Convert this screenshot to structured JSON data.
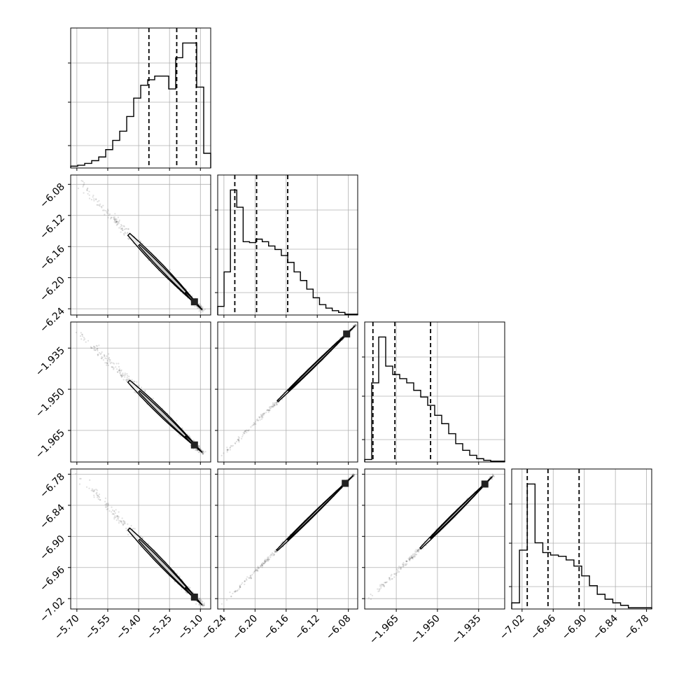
{
  "chart_data": {
    "type": "corner",
    "grid": true,
    "colors": {
      "line": "#000000",
      "grid": "#b0b0b0",
      "scatter": "#555555"
    },
    "parameters": [
      {
        "range": [
          -5.73,
          -5.05
        ],
        "ticks": [
          -5.7,
          -5.55,
          -5.4,
          -5.25,
          -5.1
        ],
        "tick_labels": [
          "−5.70",
          "−5.55",
          "−5.40",
          "−5.25",
          "−5.10"
        ],
        "quantiles": [
          -5.35,
          -5.215,
          -5.12
        ],
        "hist_counts": [
          0.2,
          0.3,
          0.5,
          0.8,
          1.2,
          2.0,
          3.0,
          4.0,
          5.6,
          7.6,
          9.0,
          9.6,
          10.0,
          10.0,
          8.6,
          12.0,
          13.6,
          13.6,
          8.8,
          1.6
        ]
      },
      {
        "range": [
          -6.248,
          -6.068
        ],
        "ticks": [
          -6.24,
          -6.2,
          -6.16,
          -6.12,
          -6.08
        ],
        "tick_labels": [
          "−6.24",
          "−6.20",
          "−6.16",
          "−6.12",
          "−6.08"
        ],
        "quantiles": [
          -6.226,
          -6.198,
          -6.158
        ],
        "hist_counts": [
          1.0,
          5.0,
          14.5,
          12.5,
          8.5,
          8.4,
          8.8,
          8.5,
          8.0,
          7.6,
          6.9,
          6.1,
          5.0,
          4.0,
          3.0,
          2.0,
          1.2,
          0.8,
          0.5,
          0.3,
          0.1,
          0.1
        ]
      },
      {
        "range": [
          -1.9765,
          -1.9255
        ],
        "ticks": [
          -1.965,
          -1.95,
          -1.935
        ],
        "tick_labels": [
          "−1.965",
          "−1.950",
          "−1.935"
        ],
        "quantiles": [
          -1.9735,
          -1.9655,
          -1.9525
        ],
        "hist_counts": [
          0.3,
          9.5,
          15.0,
          11.5,
          10.5,
          10.0,
          9.5,
          8.6,
          7.8,
          6.8,
          5.6,
          4.6,
          3.4,
          2.2,
          1.4,
          0.8,
          0.4,
          0.2,
          0.1,
          0.1
        ]
      },
      {
        "range": [
          -7.04,
          -6.77
        ],
        "ticks": [
          -7.02,
          -6.96,
          -6.9,
          -6.84,
          -6.78
        ],
        "tick_labels": [
          "−7.02",
          "−6.96",
          "−6.90",
          "−6.84",
          "−6.78"
        ],
        "quantiles": [
          -7.01,
          -6.97,
          -6.91
        ],
        "hist_counts": [
          0.5,
          4.8,
          10.2,
          5.4,
          4.6,
          4.4,
          4.3,
          4.0,
          3.5,
          2.7,
          1.9,
          1.2,
          0.8,
          0.5,
          0.3,
          0.1,
          0.1,
          0.1
        ]
      }
    ],
    "pairs": [
      {
        "row": 1,
        "col": 0,
        "from": [
          -5.71,
          -6.073
        ],
        "to": [
          -5.085,
          -6.243
        ],
        "spread": 0.04
      },
      {
        "row": 2,
        "col": 0,
        "from": [
          -5.71,
          -1.928
        ],
        "to": [
          -5.085,
          -1.9735
        ],
        "spread": 0.04
      },
      {
        "row": 2,
        "col": 1,
        "from": [
          -6.244,
          -1.9745
        ],
        "to": [
          -6.07,
          -1.9265
        ],
        "spread": 0.018
      },
      {
        "row": 3,
        "col": 0,
        "from": [
          -5.71,
          -6.778
        ],
        "to": [
          -5.085,
          -7.035
        ],
        "spread": 0.04
      },
      {
        "row": 3,
        "col": 1,
        "from": [
          -6.244,
          -7.033
        ],
        "to": [
          -6.072,
          -6.78
        ],
        "spread": 0.018
      },
      {
        "row": 3,
        "col": 2,
        "from": [
          -1.9755,
          -7.025
        ],
        "to": [
          -1.9295,
          -6.782
        ],
        "spread": 0.02
      }
    ]
  }
}
